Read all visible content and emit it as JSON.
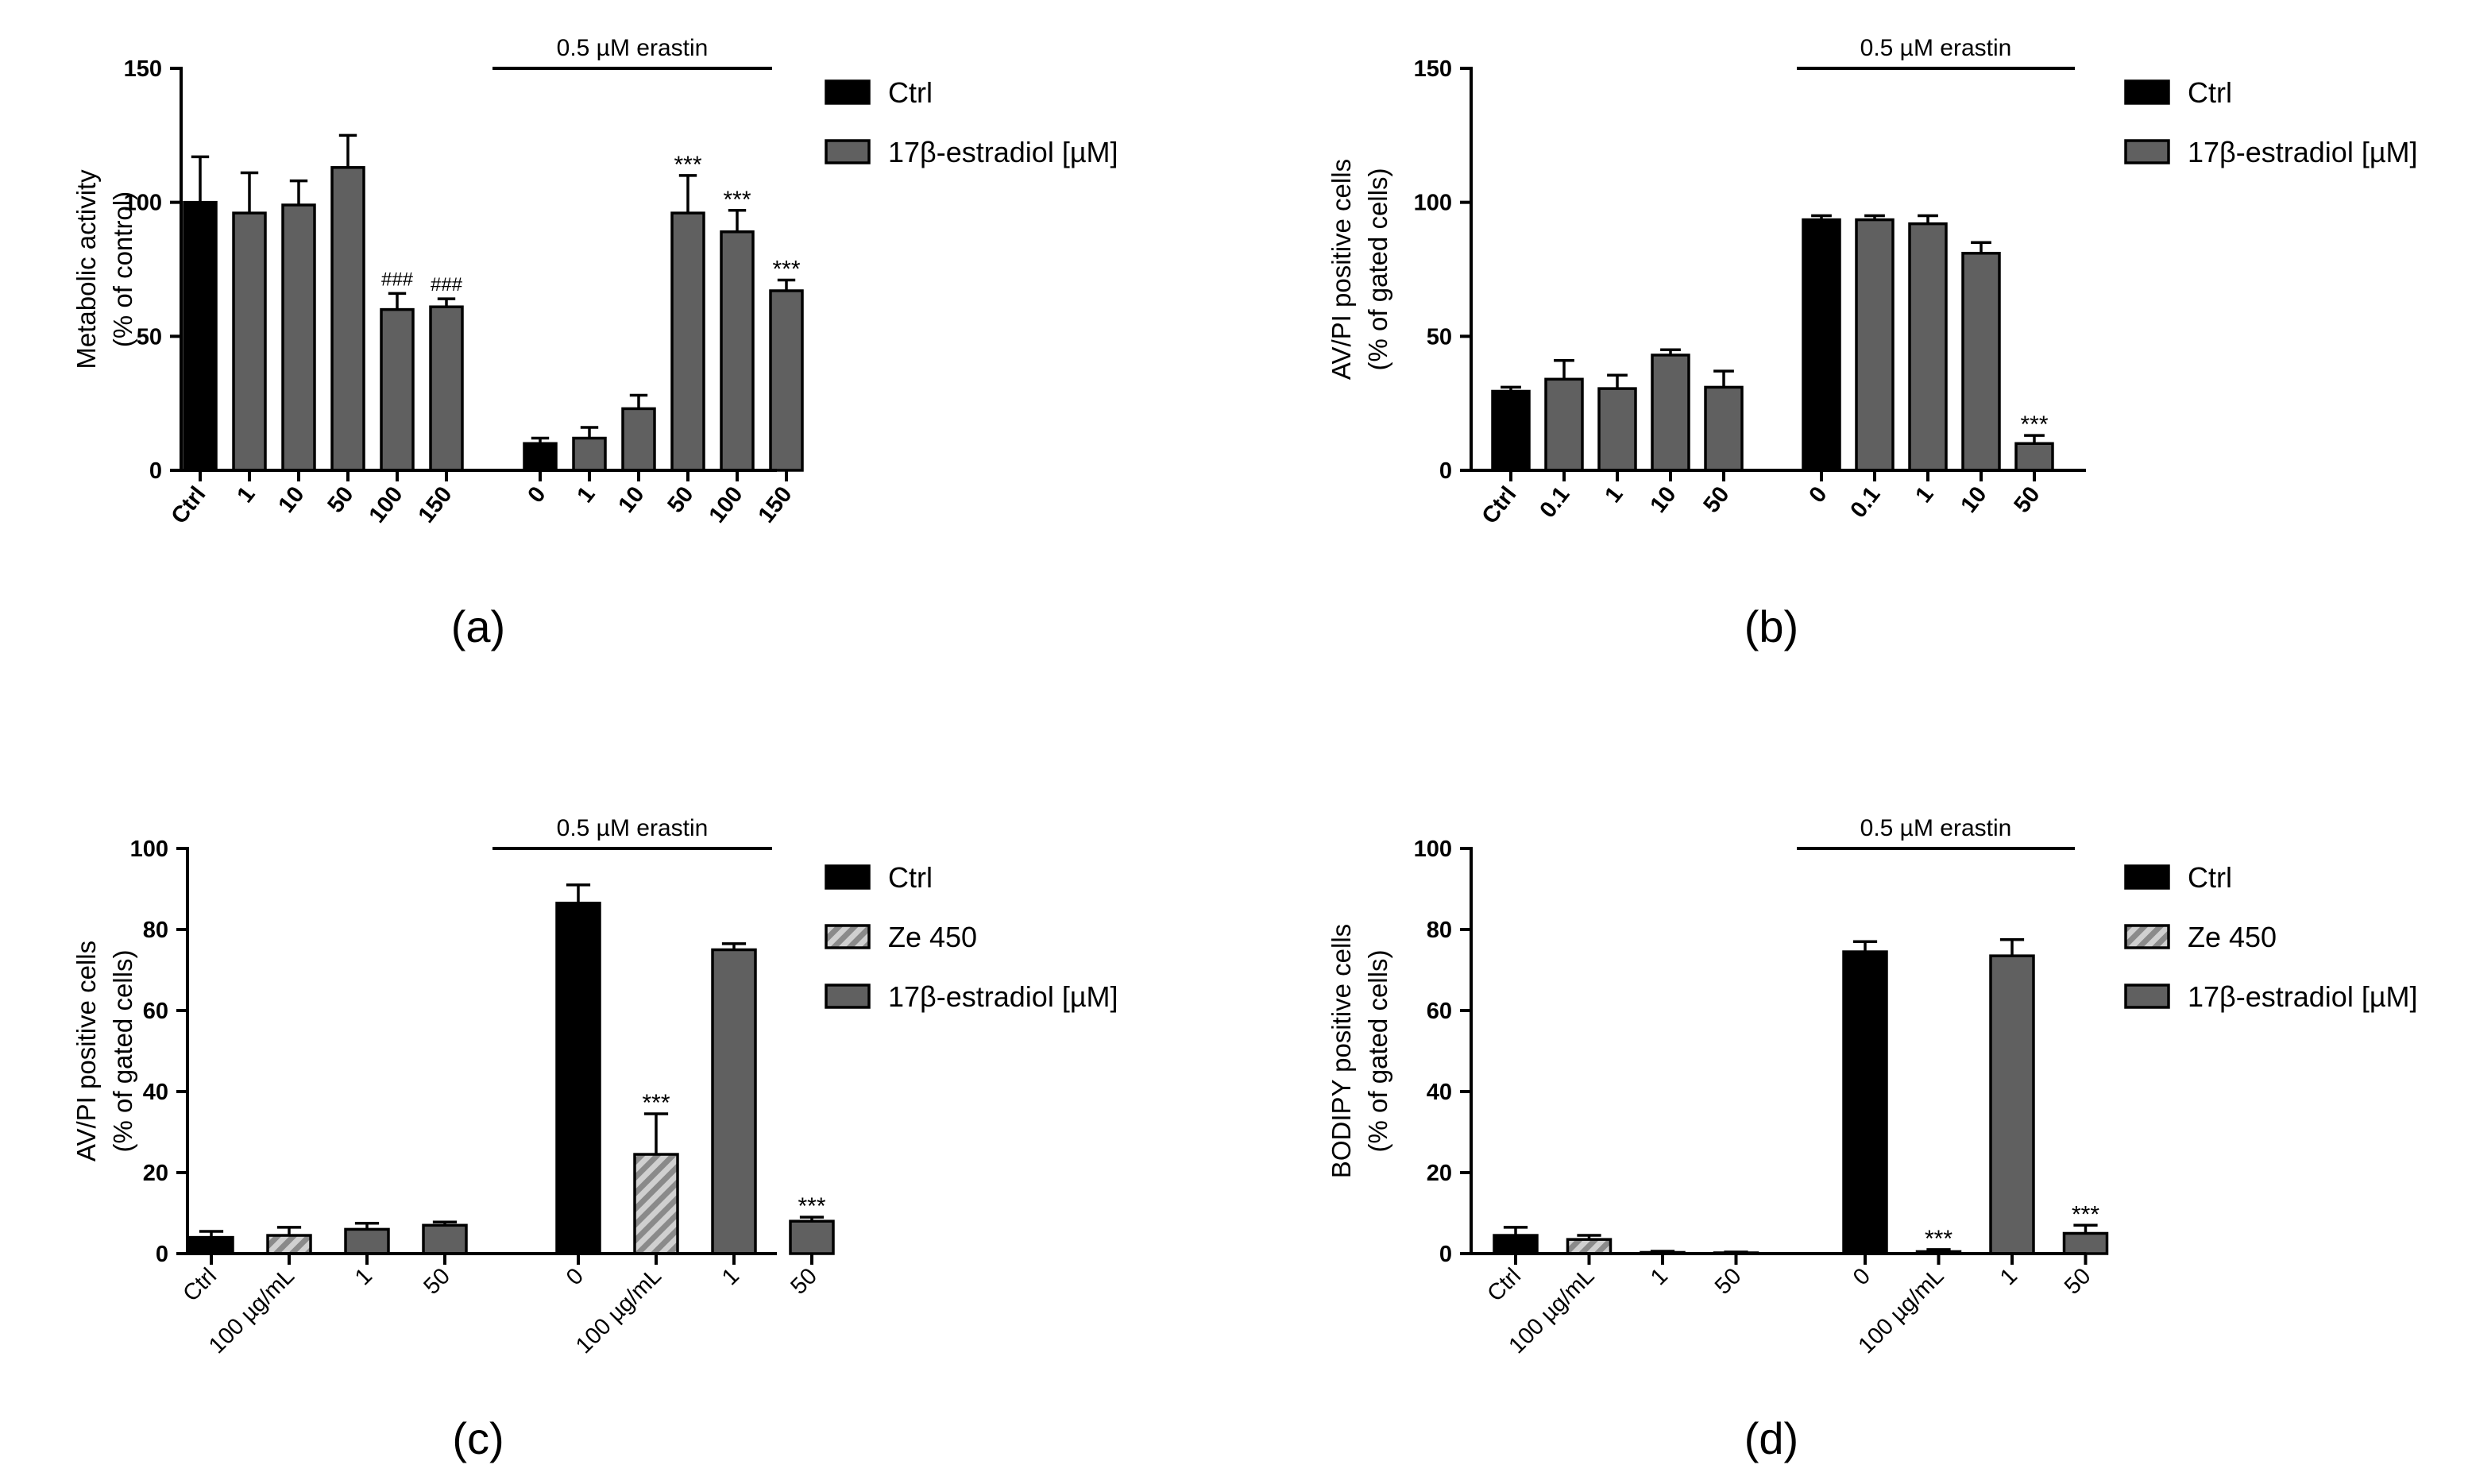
{
  "chart_data": [
    {
      "id": "a",
      "type": "bar",
      "panel_label": "(a)",
      "ylabel": [
        "Metabolic activity",
        "(% of  control)"
      ],
      "ylim": [
        0,
        150
      ],
      "yticks": [
        0,
        50,
        100,
        150
      ],
      "bracket_label": "0.5 µM erastin",
      "categories": [
        "Ctrl",
        "1",
        "10",
        "50",
        "100",
        "150",
        "0",
        "1",
        "10",
        "50",
        "100",
        "150"
      ],
      "values": [
        100,
        96,
        99,
        113,
        60,
        61,
        10,
        12,
        23,
        96,
        89,
        67
      ],
      "errors": [
        17,
        15,
        9,
        12,
        6,
        3,
        2,
        4,
        5,
        14,
        8,
        4
      ],
      "fills": [
        "ctrl",
        "estradiol",
        "estradiol",
        "estradiol",
        "estradiol",
        "estradiol",
        "ctrl",
        "estradiol",
        "estradiol",
        "estradiol",
        "estradiol",
        "estradiol"
      ],
      "annotations": [
        "",
        "",
        "",
        "",
        "###",
        "###",
        "",
        "",
        "",
        "***",
        "***",
        "***"
      ],
      "legend": [
        {
          "key": "ctrl",
          "label": "Ctrl"
        },
        {
          "key": "estradiol",
          "label": "17β-estradiol [µM]"
        }
      ]
    },
    {
      "id": "b",
      "type": "bar",
      "panel_label": "(b)",
      "ylabel": [
        "AV/PI positive cells",
        "(% of  gated cells)"
      ],
      "ylim": [
        0,
        150
      ],
      "yticks": [
        0,
        50,
        100,
        150
      ],
      "bracket_label": "0.5 µM erastin",
      "categories": [
        "Ctrl",
        "0.1",
        "1",
        "10",
        "50",
        "0",
        "0.1",
        "1",
        "10",
        "50"
      ],
      "values": [
        29.5,
        34,
        30.5,
        43,
        31,
        93.5,
        93.5,
        92,
        81,
        10
      ],
      "errors": [
        1.5,
        7,
        5,
        2,
        6,
        1.5,
        1.5,
        3,
        4,
        3
      ],
      "fills": [
        "ctrl",
        "estradiol",
        "estradiol",
        "estradiol",
        "estradiol",
        "ctrl",
        "estradiol",
        "estradiol",
        "estradiol",
        "estradiol"
      ],
      "annotations": [
        "",
        "",
        "",
        "",
        "",
        "",
        "",
        "",
        "",
        "***"
      ],
      "legend": [
        {
          "key": "ctrl",
          "label": "Ctrl"
        },
        {
          "key": "estradiol",
          "label": "17β-estradiol [µM]"
        }
      ]
    },
    {
      "id": "c",
      "type": "bar",
      "panel_label": "(c)",
      "ylabel": [
        "AV/PI positive cells",
        "(% of  gated cells)"
      ],
      "ylim": [
        0,
        100
      ],
      "yticks": [
        0,
        20,
        40,
        60,
        80,
        100
      ],
      "bracket_label": "0.5 µM erastin",
      "categories": [
        "Ctrl",
        "100 µg/mL",
        "1",
        "50",
        "0",
        "100 µg/mL",
        "1",
        "50"
      ],
      "values": [
        4,
        4.5,
        6,
        7,
        86.5,
        24.5,
        75,
        8
      ],
      "errors": [
        1.5,
        2,
        1.5,
        0.8,
        4.5,
        10,
        1.5,
        1
      ],
      "fills": [
        "ctrl",
        "ze",
        "estradiol",
        "estradiol",
        "ctrl",
        "ze",
        "estradiol",
        "estradiol"
      ],
      "annotations": [
        "",
        "",
        "",
        "",
        "",
        "***",
        "",
        "***"
      ],
      "legend": [
        {
          "key": "ctrl",
          "label": "Ctrl"
        },
        {
          "key": "ze",
          "label": "Ze 450"
        },
        {
          "key": "estradiol",
          "label": "17β-estradiol [µM]"
        }
      ]
    },
    {
      "id": "d",
      "type": "bar",
      "panel_label": "(d)",
      "ylabel": [
        "BODIPY positive cells",
        "(% of  gated cells)"
      ],
      "ylim": [
        0,
        100
      ],
      "yticks": [
        0,
        20,
        40,
        60,
        80,
        100
      ],
      "bracket_label": "0.5 µM erastin",
      "categories": [
        "Ctrl",
        "100 µg/mL",
        "1",
        "50",
        "0",
        "100 µg/mL",
        "1",
        "50"
      ],
      "values": [
        4.5,
        3.5,
        0.3,
        0.2,
        74.5,
        0.5,
        73.5,
        5
      ],
      "errors": [
        2,
        1,
        0.3,
        0.2,
        2.5,
        0.5,
        4,
        2
      ],
      "fills": [
        "ctrl",
        "ze",
        "estradiol",
        "estradiol",
        "ctrl",
        "ze",
        "estradiol",
        "estradiol"
      ],
      "annotations": [
        "",
        "",
        "",
        "",
        "",
        "***",
        "",
        "***"
      ],
      "legend": [
        {
          "key": "ctrl",
          "label": "Ctrl"
        },
        {
          "key": "ze",
          "label": "Ze 450"
        },
        {
          "key": "estradiol",
          "label": "17β-estradiol [µM]"
        }
      ]
    }
  ],
  "colors": {
    "ctrl": "#000000",
    "estradiol": "#606060",
    "ze_fill": "#d0d0d0",
    "ze_stripe": "#8a8a8a",
    "axis": "#000000"
  }
}
